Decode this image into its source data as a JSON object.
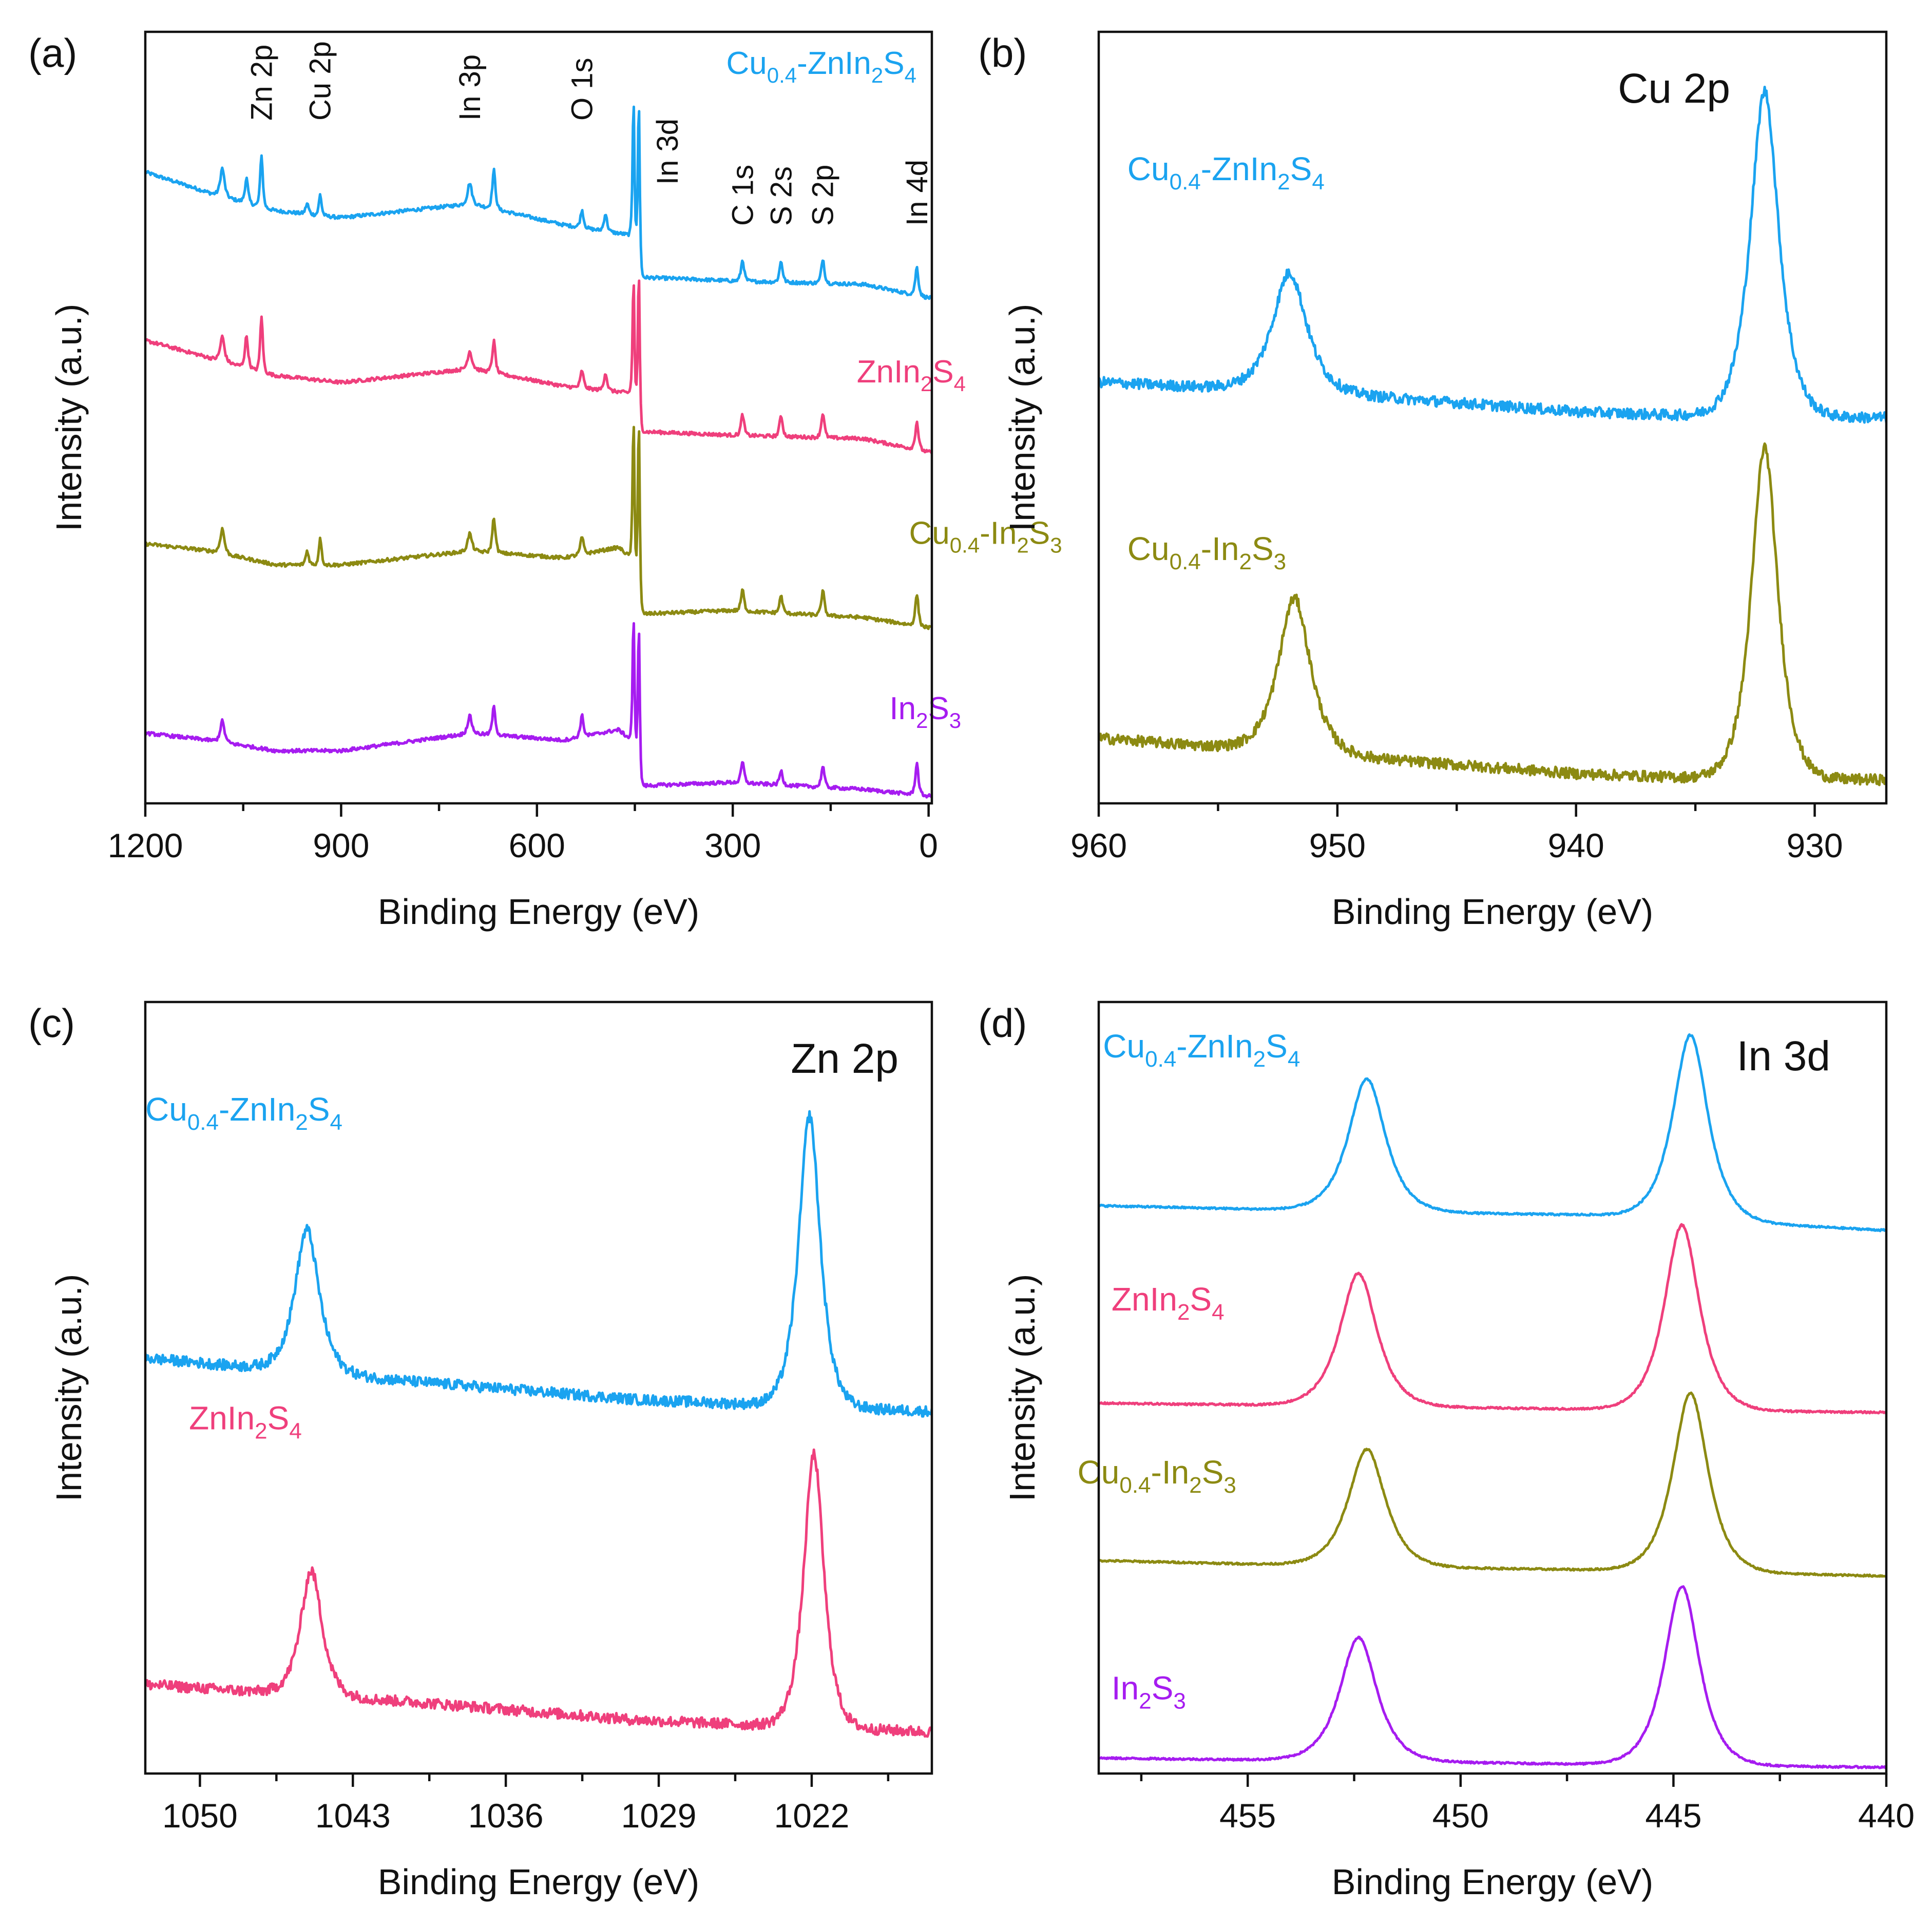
{
  "colors": {
    "Cu0.4-ZnIn2S4": "#1aa3f0",
    "ZnIn2S4": "#ef3f7c",
    "Cu0.4-In2S3": "#8c8a12",
    "In2S3": "#a61cf0"
  },
  "labels": {
    "Cu0.4-ZnIn2S4": {
      "parts": [
        [
          "Cu",
          ""
        ],
        [
          "0.4",
          "sub"
        ],
        [
          "-ZnIn",
          ""
        ],
        [
          "2",
          "sub"
        ],
        [
          "S",
          ""
        ],
        [
          "4",
          "sub"
        ]
      ]
    },
    "ZnIn2S4": {
      "parts": [
        [
          "ZnIn",
          ""
        ],
        [
          "2",
          "sub"
        ],
        [
          "S",
          ""
        ],
        [
          "4",
          "sub"
        ]
      ]
    },
    "Cu0.4-In2S3": {
      "parts": [
        [
          "Cu",
          ""
        ],
        [
          "0.4",
          "sub"
        ],
        [
          "-In",
          ""
        ],
        [
          "2",
          "sub"
        ],
        [
          "S",
          ""
        ],
        [
          "3",
          "sub"
        ]
      ]
    },
    "In2S3": {
      "parts": [
        [
          "In",
          ""
        ],
        [
          "2",
          "sub"
        ],
        [
          "S",
          ""
        ],
        [
          "3",
          "sub"
        ]
      ]
    }
  },
  "chart_data": [
    {
      "panel": "(a)",
      "type": "line",
      "title": "",
      "xlabel": "Binding Energy (eV)",
      "ylabel": "Intensity (a.u.)",
      "xlim": [
        1200,
        -5
      ],
      "ylim": [
        0,
        22
      ],
      "xticks": [
        1200,
        900,
        600,
        300,
        0
      ],
      "yticks": false,
      "peak_annotations": [
        {
          "text": "Zn 2p",
          "x": 1022
        },
        {
          "text": "Cu 2p",
          "x": 932
        },
        {
          "text": "In 3p",
          "x": 703
        },
        {
          "text": "O 1s",
          "x": 531
        },
        {
          "text": "In 3d",
          "x": 400
        },
        {
          "text": "C 1s",
          "x": 285
        },
        {
          "text": "S 2s",
          "x": 226
        },
        {
          "text": "S 2p",
          "x": 162
        },
        {
          "text": "In 4d",
          "x": 18
        }
      ],
      "series": [
        {
          "name": "Cu0.4-ZnIn2S4",
          "baseline": [
            [
              1200,
              18.0
            ],
            [
              1100,
              17.4
            ],
            [
              1000,
              16.9
            ],
            [
              900,
              16.7
            ],
            [
              700,
              17.1
            ],
            [
              560,
              16.5
            ],
            [
              455,
              16.2
            ],
            [
              440,
              15.0
            ],
            [
              300,
              14.9
            ],
            [
              100,
              14.8
            ],
            [
              -5,
              14.4
            ]
          ],
          "peaks": [
            [
              1082,
              0.8,
              4
            ],
            [
              1045,
              0.7,
              3
            ],
            [
              1022,
              1.5,
              2.5
            ],
            [
              952,
              0.3,
              3
            ],
            [
              932,
              0.6,
              2.5
            ],
            [
              703,
              0.6,
              4
            ],
            [
              666,
              1.1,
              3
            ],
            [
              531,
              0.5,
              3
            ],
            [
              495,
              0.5,
              3
            ],
            [
              452,
              4.2,
              1.8
            ],
            [
              444,
              4.8,
              1.8
            ],
            [
              285,
              0.6,
              3
            ],
            [
              226,
              0.6,
              3
            ],
            [
              162,
              0.7,
              3
            ],
            [
              18,
              0.8,
              3
            ]
          ],
          "label_pos": [
            310,
            20.8
          ]
        },
        {
          "name": "ZnIn2S4",
          "baseline": [
            [
              1200,
              13.2
            ],
            [
              1100,
              12.7
            ],
            [
              1000,
              12.2
            ],
            [
              900,
              12.0
            ],
            [
              700,
              12.4
            ],
            [
              560,
              11.9
            ],
            [
              455,
              11.7
            ],
            [
              440,
              10.6
            ],
            [
              300,
              10.5
            ],
            [
              100,
              10.4
            ],
            [
              -5,
              10.0
            ]
          ],
          "peaks": [
            [
              1082,
              0.7,
              4
            ],
            [
              1045,
              0.9,
              3
            ],
            [
              1022,
              1.6,
              2.5
            ],
            [
              703,
              0.5,
              4
            ],
            [
              666,
              0.9,
              3
            ],
            [
              531,
              0.5,
              3
            ],
            [
              495,
              0.5,
              3
            ],
            [
              452,
              3.5,
              1.8
            ],
            [
              444,
              4.3,
              1.8
            ],
            [
              285,
              0.6,
              3
            ],
            [
              226,
              0.6,
              3
            ],
            [
              162,
              0.7,
              3
            ],
            [
              18,
              0.8,
              3
            ]
          ],
          "label_pos": [
            110,
            12.0
          ]
        },
        {
          "name": "Cu0.4-In2S3",
          "baseline": [
            [
              1200,
              7.4
            ],
            [
              1100,
              7.2
            ],
            [
              1000,
              6.8
            ],
            [
              900,
              6.8
            ],
            [
              700,
              7.2
            ],
            [
              560,
              7.0
            ],
            [
              475,
              7.3
            ],
            [
              455,
              7.0
            ],
            [
              440,
              5.4
            ],
            [
              300,
              5.5
            ],
            [
              100,
              5.3
            ],
            [
              -5,
              5.0
            ]
          ],
          "peaks": [
            [
              1082,
              0.7,
              4
            ],
            [
              952,
              0.4,
              3
            ],
            [
              932,
              0.8,
              2.5
            ],
            [
              703,
              0.5,
              4
            ],
            [
              666,
              1.0,
              3
            ],
            [
              531,
              0.5,
              3
            ],
            [
              452,
              4.3,
              1.8
            ],
            [
              444,
              5.2,
              1.8
            ],
            [
              285,
              0.6,
              3
            ],
            [
              226,
              0.5,
              3
            ],
            [
              162,
              0.7,
              3
            ],
            [
              18,
              0.9,
              3
            ]
          ],
          "label_pos": [
            30,
            7.4
          ]
        },
        {
          "name": "In2S3",
          "baseline": [
            [
              1200,
              2.0
            ],
            [
              1100,
              1.8
            ],
            [
              1000,
              1.5
            ],
            [
              900,
              1.5
            ],
            [
              700,
              2.0
            ],
            [
              560,
              1.8
            ],
            [
              475,
              2.1
            ],
            [
              455,
              1.8
            ],
            [
              440,
              0.5
            ],
            [
              300,
              0.6
            ],
            [
              100,
              0.4
            ],
            [
              -5,
              0.2
            ]
          ],
          "peaks": [
            [
              1082,
              0.6,
              4
            ],
            [
              703,
              0.5,
              4
            ],
            [
              666,
              0.8,
              3
            ],
            [
              531,
              0.6,
              3
            ],
            [
              452,
              3.8,
              1.8
            ],
            [
              444,
              4.3,
              1.8
            ],
            [
              285,
              0.6,
              3
            ],
            [
              226,
              0.4,
              3
            ],
            [
              162,
              0.6,
              3
            ],
            [
              18,
              0.9,
              3
            ]
          ],
          "label_pos": [
            60,
            2.4
          ]
        }
      ]
    },
    {
      "panel": "(b)",
      "type": "line",
      "title": "Cu 2p",
      "xlabel": "Binding Energy (eV)",
      "ylabel": "Intensity (a.u.)",
      "xlim": [
        960,
        927
      ],
      "ylim": [
        0,
        13
      ],
      "xticks": [
        960,
        950,
        940,
        930
      ],
      "yticks": false,
      "series": [
        {
          "name": "Cu0.4-ZnIn2S4",
          "baseline": [
            [
              960,
              7.1
            ],
            [
              950,
              6.9
            ],
            [
              940,
              6.6
            ],
            [
              933,
              6.5
            ],
            [
              927,
              6.5
            ]
          ],
          "peaks": [
            [
              952.0,
              2.0,
              0.9
            ],
            [
              932.1,
              5.5,
              0.75
            ]
          ],
          "label_pos": [
            958.8,
            10.5
          ]
        },
        {
          "name": "Cu0.4-In2S3",
          "baseline": [
            [
              960,
              1.1
            ],
            [
              950,
              0.8
            ],
            [
              940,
              0.5
            ],
            [
              933,
              0.4
            ],
            [
              927,
              0.4
            ]
          ],
          "peaks": [
            [
              951.8,
              2.6,
              0.85
            ],
            [
              932.1,
              5.6,
              0.7
            ]
          ],
          "label_pos": [
            958.8,
            4.1
          ]
        }
      ]
    },
    {
      "panel": "(c)",
      "type": "line",
      "title": "Zn 2p",
      "xlabel": "Binding Energy (eV)",
      "ylabel": "Intensity (a.u.)",
      "xlim": [
        1052.5,
        1016.5
      ],
      "ylim": [
        0,
        13
      ],
      "xticks": [
        1050,
        1043,
        1036,
        1029,
        1022
      ],
      "yticks": false,
      "series": [
        {
          "name": "Cu0.4-ZnIn2S4",
          "baseline": [
            [
              1052.5,
              7.0
            ],
            [
              1040,
              6.6
            ],
            [
              1030,
              6.3
            ],
            [
              1016.5,
              6.1
            ]
          ],
          "peaks": [
            [
              1045.1,
              2.4,
              0.7
            ],
            [
              1022.1,
              4.9,
              0.62
            ]
          ],
          "label_pos": [
            1052.5,
            11.0
          ]
        },
        {
          "name": "ZnIn2S4",
          "baseline": [
            [
              1052.5,
              1.5
            ],
            [
              1040,
              1.2
            ],
            [
              1030,
              0.9
            ],
            [
              1016.5,
              0.7
            ]
          ],
          "peaks": [
            [
              1044.9,
              2.1,
              0.62
            ],
            [
              1021.9,
              4.6,
              0.58
            ]
          ],
          "label_pos": [
            1050.5,
            5.8
          ]
        }
      ]
    },
    {
      "panel": "(d)",
      "type": "line",
      "title": "In 3d",
      "xlabel": "Binding Energy (eV)",
      "ylabel": "Intensity (a.u.)",
      "xlim": [
        458.5,
        440
      ],
      "ylim": [
        0,
        12.5
      ],
      "xticks": [
        455,
        450,
        445,
        440
      ],
      "yticks": false,
      "series": [
        {
          "name": "Cu0.4-ZnIn2S4",
          "baseline": [
            [
              458.5,
              9.2
            ],
            [
              452,
              9.1
            ],
            [
              447,
              9.05
            ],
            [
              440,
              8.8
            ]
          ],
          "peaks": [
            [
              452.2,
              2.15,
              0.55
            ],
            [
              444.6,
              3.0,
              0.52
            ]
          ],
          "label_pos": [
            458.4,
            11.6
          ]
        },
        {
          "name": "ZnIn2S4",
          "baseline": [
            [
              458.5,
              6.0
            ],
            [
              452,
              5.95
            ],
            [
              447,
              5.9
            ],
            [
              440,
              5.85
            ]
          ],
          "peaks": [
            [
              452.4,
              2.15,
              0.55
            ],
            [
              444.8,
              3.0,
              0.52
            ]
          ],
          "label_pos": [
            458.2,
            7.5
          ]
        },
        {
          "name": "Cu0.4-In2S3",
          "baseline": [
            [
              458.5,
              3.45
            ],
            [
              452,
              3.35
            ],
            [
              447,
              3.3
            ],
            [
              440,
              3.2
            ]
          ],
          "peaks": [
            [
              452.2,
              1.9,
              0.55
            ],
            [
              444.6,
              2.9,
              0.52
            ]
          ],
          "label_pos": [
            459.0,
            4.7
          ]
        },
        {
          "name": "In2S3",
          "baseline": [
            [
              458.5,
              0.25
            ],
            [
              452,
              0.2
            ],
            [
              447,
              0.15
            ],
            [
              440,
              0.1
            ]
          ],
          "peaks": [
            [
              452.4,
              2.0,
              0.55
            ],
            [
              444.8,
              2.9,
              0.52
            ]
          ],
          "label_pos": [
            458.2,
            1.2
          ]
        }
      ]
    }
  ]
}
